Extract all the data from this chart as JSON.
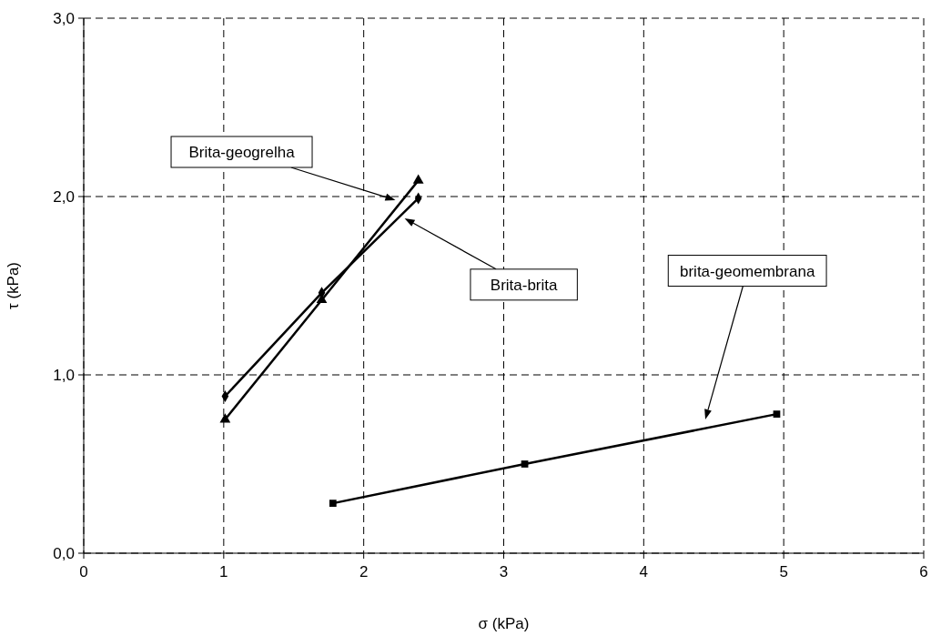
{
  "chart_data": {
    "type": "line",
    "xlabel": "σ (kPa)",
    "ylabel": "τ (kPa)",
    "xlim": [
      0,
      6
    ],
    "xticks": [
      0,
      1,
      2,
      3,
      4,
      5,
      6
    ],
    "ylim": [
      0,
      3
    ],
    "yticks": [
      {
        "value": 0,
        "label": "0,0"
      },
      {
        "value": 1,
        "label": "1,0"
      },
      {
        "value": 2,
        "label": "2,0"
      },
      {
        "value": 3,
        "label": "3,0"
      }
    ],
    "grid": true,
    "series": [
      {
        "color": "#000000",
        "marker": "diamond",
        "x": [
          1.01,
          1.7,
          2.39
        ],
        "values": [
          0.88,
          1.46,
          1.99
        ]
      },
      {
        "color": "#000000",
        "marker": "triangle",
        "x": [
          1.01,
          1.7,
          2.39
        ],
        "values": [
          0.75,
          1.42,
          2.09
        ]
      },
      {
        "color": "#000000",
        "marker": "square",
        "x": [
          1.78,
          3.15,
          4.95
        ],
        "values": [
          0.28,
          0.5,
          0.78
        ]
      }
    ],
    "annotations": [
      "Brita-geogrelha",
      "Brita-brita",
      "brita-geomembrana"
    ]
  }
}
